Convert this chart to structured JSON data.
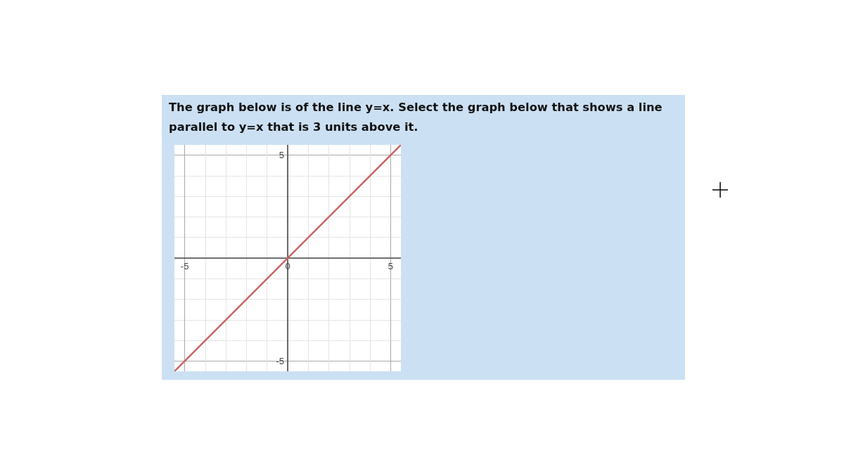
{
  "chart_data": {
    "type": "line",
    "title": "The graph below is of the line y=x. Select the graph below that shows a line parallel to y=x that is 3 units above it.",
    "x": [
      -5.5,
      5.5
    ],
    "series": [
      {
        "color": "#cc6461",
        "values": [
          -5.5,
          5.5
        ]
      }
    ],
    "xlim": [
      -5.5,
      5.5
    ],
    "ylim": [
      -5.5,
      5.5
    ],
    "xticks": [
      -5,
      {
        "value": -4,
        "label": null
      },
      {
        "value": -3,
        "label": null
      },
      {
        "value": -2,
        "label": null
      },
      {
        "value": -1,
        "label": null
      },
      0,
      {
        "value": 1,
        "label": null
      },
      {
        "value": 2,
        "label": null
      },
      {
        "value": 3,
        "label": null
      },
      {
        "value": 4,
        "label": null
      },
      5
    ],
    "yticks": [
      -5,
      {
        "value": -4,
        "label": null
      },
      {
        "value": -3,
        "label": null
      },
      {
        "value": -2,
        "label": null
      },
      {
        "value": -1,
        "label": null
      },
      {
        "value": 0,
        "label": null
      },
      {
        "value": 1,
        "label": null
      },
      {
        "value": 2,
        "label": null
      },
      {
        "value": 3,
        "label": null
      },
      {
        "value": 4,
        "label": null
      },
      5
    ],
    "grid": true,
    "marker": "none"
  }
}
